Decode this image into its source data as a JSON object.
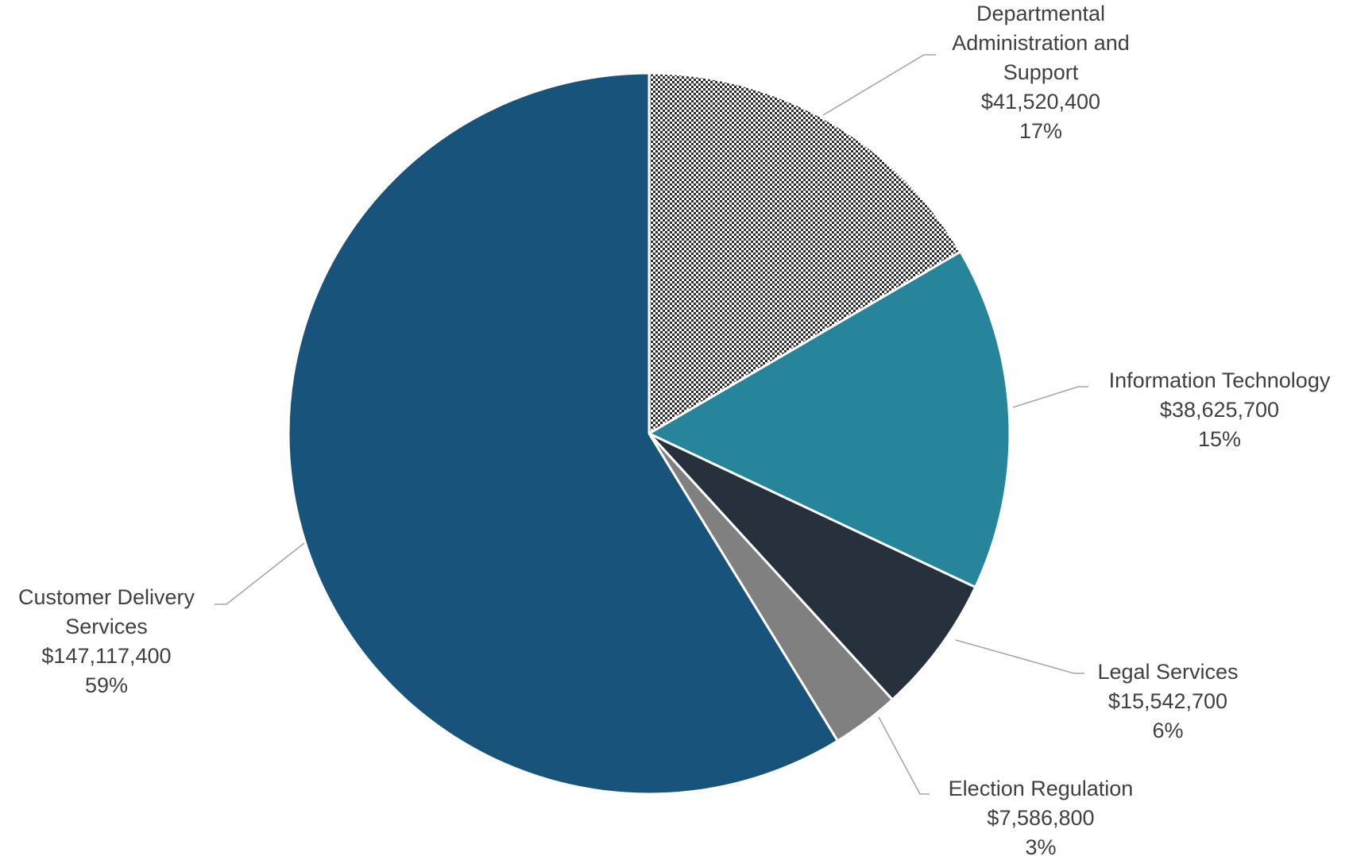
{
  "chart_data": {
    "type": "pie",
    "title": "",
    "slices": [
      {
        "label": "Departmental Administration and Support",
        "value": 41520400,
        "value_label": "$41,520,400",
        "percent_label": "17%",
        "color": "#2b2b2b",
        "pattern": "checker"
      },
      {
        "label": "Information Technology",
        "value": 38625700,
        "value_label": "$38,625,700",
        "percent_label": "15%",
        "color": "#26849b"
      },
      {
        "label": "Legal Services",
        "value": 15542700,
        "value_label": "$15,542,700",
        "percent_label": "6%",
        "color": "#27303d"
      },
      {
        "label": "Election Regulation",
        "value": 7586800,
        "value_label": "$7,586,800",
        "percent_label": "3%",
        "color": "#808080"
      },
      {
        "label": "Customer Delivery Services",
        "value": 147117400,
        "value_label": "$147,117,400",
        "percent_label": "59%",
        "color": "#18537c"
      }
    ],
    "label_text": [
      [
        "Departmental",
        "Administration and",
        "Support"
      ],
      [
        "Information Technology"
      ],
      [
        "Legal Services"
      ],
      [
        "Election Regulation"
      ],
      [
        "Customer Delivery",
        "Services"
      ]
    ],
    "start_angle_deg": 0,
    "direction": "clockwise",
    "legend": "none",
    "data_labels": "outside with leader lines"
  }
}
